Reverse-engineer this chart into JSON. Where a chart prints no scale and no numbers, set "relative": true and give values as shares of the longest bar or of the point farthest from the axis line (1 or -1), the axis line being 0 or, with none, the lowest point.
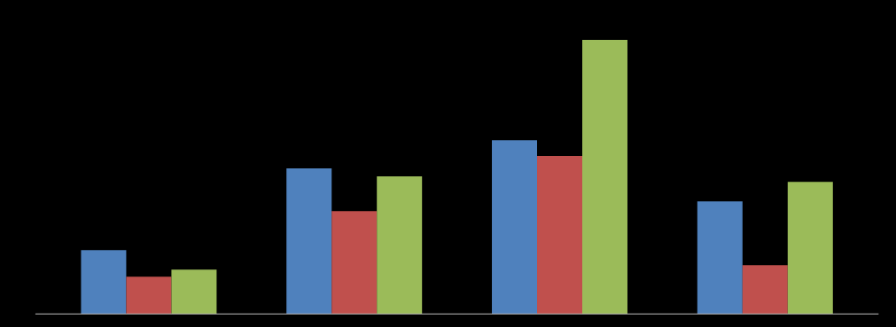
{
  "chart_data": {
    "type": "bar",
    "relative": true,
    "categories": [
      null,
      null,
      null,
      null
    ],
    "series": [
      {
        "color": "#4f81bd",
        "values": [
          0.233,
          0.531,
          0.634,
          0.411
        ]
      },
      {
        "color": "#c0504d",
        "values": [
          0.136,
          0.375,
          0.576,
          0.178
        ]
      },
      {
        "color": "#9bbb59",
        "values": [
          0.162,
          0.502,
          1.0,
          0.482
        ]
      }
    ],
    "grid": false,
    "legend": false
  }
}
